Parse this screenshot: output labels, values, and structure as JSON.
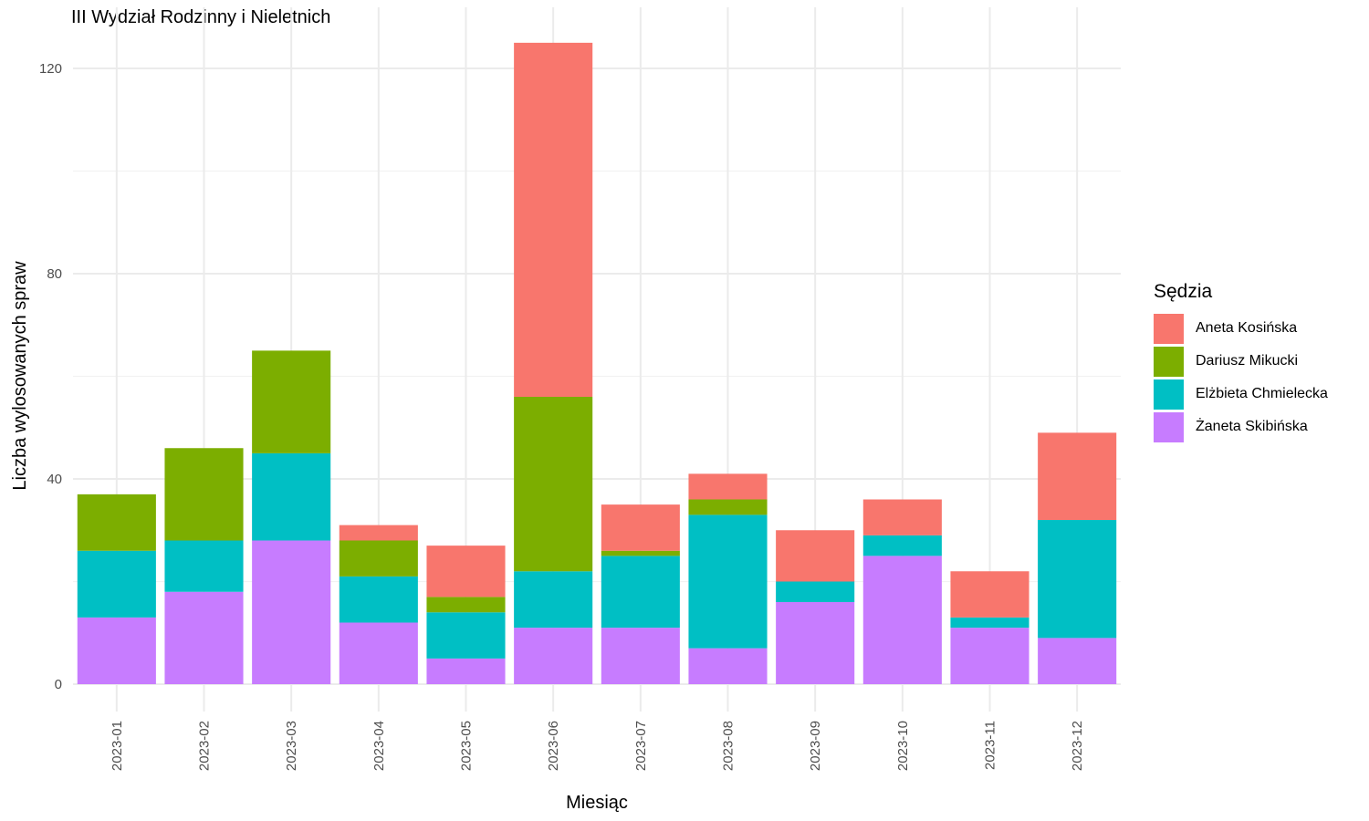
{
  "chart_data": {
    "type": "bar",
    "stacked": true,
    "title": "III Wydział Rodzinny i Nieletnich",
    "xlabel": "Miesiąc",
    "ylabel": "Liczba wylosowanych spraw",
    "ylim": [
      -5,
      128
    ],
    "yticks": [
      0,
      40,
      80,
      120
    ],
    "grid": true,
    "legend_title": "Sędzia",
    "legend_position": "right",
    "categories": [
      "2023-01",
      "2023-02",
      "2023-03",
      "2023-04",
      "2023-05",
      "2023-06",
      "2023-07",
      "2023-08",
      "2023-09",
      "2023-10",
      "2023-11",
      "2023-12"
    ],
    "series": [
      {
        "name": "Żaneta Skibińska",
        "color": "#C77CFF",
        "values": [
          13,
          18,
          28,
          12,
          5,
          11,
          11,
          7,
          16,
          25,
          11,
          9
        ]
      },
      {
        "name": "Elżbieta Chmielecka",
        "color": "#00BFC4",
        "values": [
          13,
          10,
          17,
          9,
          9,
          11,
          14,
          26,
          4,
          4,
          2,
          23
        ]
      },
      {
        "name": "Dariusz Mikucki",
        "color": "#7CAE00",
        "values": [
          11,
          18,
          20,
          7,
          3,
          34,
          1,
          3,
          0,
          0,
          0,
          0
        ]
      },
      {
        "name": "Aneta Kosińska",
        "color": "#F8766D",
        "values": [
          0,
          0,
          0,
          3,
          10,
          69,
          9,
          5,
          10,
          7,
          9,
          17
        ]
      }
    ],
    "legend_order": [
      "Aneta Kosińska",
      "Dariusz Mikucki",
      "Elżbieta Chmielecka",
      "Żaneta Skibińska"
    ]
  }
}
